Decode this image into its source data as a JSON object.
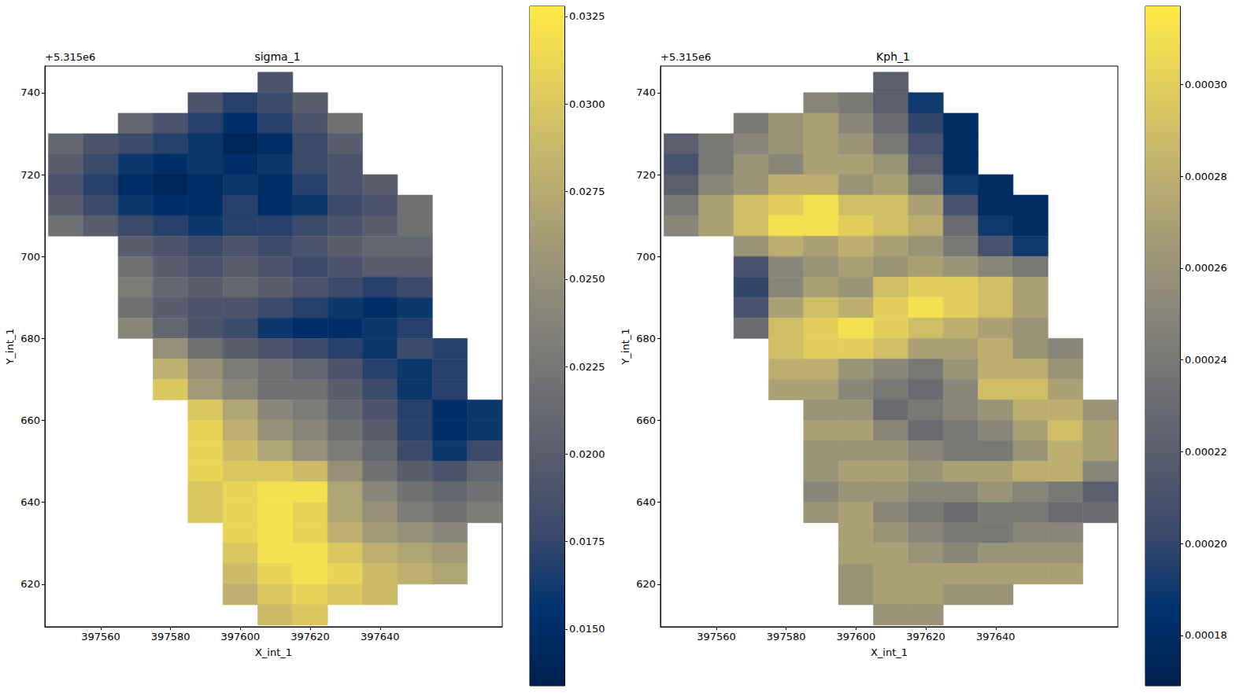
{
  "chart_data": [
    {
      "type": "heatmap",
      "title": "sigma_1",
      "xlabel": "X_int_1",
      "ylabel": "Y_int_1",
      "annotations": [
        "+5.315e6"
      ],
      "xlim": [
        397544,
        397675
      ],
      "ylim": [
        609.6,
        746.5
      ],
      "xticks": [
        397560,
        397580,
        397600,
        397620,
        397640
      ],
      "yticks": [
        620,
        640,
        660,
        680,
        700,
        720,
        740
      ],
      "grid": false,
      "colorbar": {
        "range": [
          0.01338,
          0.03279
        ],
        "ticks": [
          {
            "value": 0.015,
            "label": "0.0150"
          },
          0.0175,
          {
            "value": 0.02,
            "label": "0.0200"
          },
          0.0225,
          {
            "value": 0.025,
            "label": "0.0250"
          },
          0.0275,
          {
            "value": 0.03,
            "label": "0.0300"
          },
          0.0325
        ]
      },
      "cells": {
        "x": [
          397550,
          397560,
          397570,
          397580,
          397590,
          397600,
          397610,
          397620,
          397630,
          397640,
          397650,
          397660,
          397670
        ],
        "y": [
          742.5,
          737.5,
          732.5,
          727.5,
          722.5,
          717.5,
          712.5,
          707.5,
          702.5,
          697.5,
          692.5,
          687.5,
          682.5,
          677.5,
          672.5,
          667.5,
          662.5,
          657.5,
          652.5,
          647.5,
          642.5,
          637.5,
          632.5,
          627.5,
          622.5,
          617.5,
          612.5
        ],
        "values": [
          [
            null,
            null,
            null,
            null,
            null,
            null,
            0.019,
            null,
            null,
            null,
            null,
            null,
            null
          ],
          [
            null,
            null,
            null,
            null,
            0.019,
            0.017,
            0.018,
            0.02,
            null,
            null,
            null,
            null,
            null
          ],
          [
            null,
            null,
            0.021,
            0.019,
            0.017,
            0.015,
            0.017,
            0.019,
            0.022,
            null,
            null,
            null,
            null
          ],
          [
            0.021,
            0.019,
            0.018,
            0.017,
            0.016,
            0.014,
            0.015,
            0.018,
            0.02,
            null,
            null,
            null,
            null
          ],
          [
            0.02,
            0.018,
            0.016,
            0.015,
            0.016,
            0.015,
            0.016,
            0.018,
            0.019,
            null,
            null,
            null,
            null
          ],
          [
            0.019,
            0.017,
            0.015,
            0.014,
            0.015,
            0.016,
            0.015,
            0.017,
            0.019,
            0.02,
            null,
            null,
            null
          ],
          [
            0.02,
            0.018,
            0.016,
            0.015,
            0.015,
            0.017,
            0.015,
            0.016,
            0.018,
            0.019,
            0.022,
            null,
            null
          ],
          [
            0.022,
            0.02,
            0.018,
            0.017,
            0.016,
            0.017,
            0.017,
            0.018,
            0.019,
            0.02,
            0.022,
            null,
            null
          ],
          [
            null,
            null,
            0.02,
            0.019,
            0.018,
            0.019,
            0.018,
            0.019,
            0.02,
            0.021,
            0.021,
            null,
            null
          ],
          [
            null,
            null,
            0.022,
            0.02,
            0.019,
            0.02,
            0.019,
            0.018,
            0.019,
            0.02,
            0.02,
            null,
            null
          ],
          [
            null,
            null,
            0.023,
            0.021,
            0.02,
            0.021,
            0.02,
            0.019,
            0.018,
            0.017,
            0.018,
            null,
            null
          ],
          [
            null,
            null,
            0.022,
            0.02,
            0.019,
            0.019,
            0.018,
            0.017,
            0.016,
            0.015,
            0.016,
            null,
            null
          ],
          [
            null,
            null,
            0.024,
            0.021,
            0.019,
            0.018,
            0.016,
            0.015,
            0.015,
            0.016,
            0.017,
            null,
            null
          ],
          [
            null,
            null,
            null,
            0.025,
            0.022,
            0.02,
            0.019,
            0.018,
            0.017,
            0.016,
            0.018,
            0.017,
            null
          ],
          [
            null,
            null,
            null,
            0.028,
            0.025,
            0.023,
            0.022,
            0.021,
            0.019,
            0.017,
            0.016,
            0.017,
            null
          ],
          [
            null,
            null,
            null,
            0.03,
            0.026,
            0.024,
            0.022,
            0.022,
            0.02,
            0.018,
            0.016,
            0.017,
            null
          ],
          [
            null,
            null,
            null,
            null,
            0.03,
            0.027,
            0.024,
            0.023,
            0.021,
            0.019,
            0.017,
            0.015,
            0.016
          ],
          [
            null,
            null,
            null,
            null,
            0.031,
            0.028,
            0.025,
            0.024,
            0.022,
            0.02,
            0.017,
            0.015,
            0.016
          ],
          [
            null,
            null,
            null,
            null,
            0.031,
            0.029,
            0.027,
            0.025,
            0.023,
            0.021,
            0.018,
            0.016,
            0.018
          ],
          [
            null,
            null,
            null,
            null,
            0.031,
            0.03,
            0.03,
            0.029,
            0.025,
            0.022,
            0.02,
            0.019,
            0.021
          ],
          [
            null,
            null,
            null,
            null,
            0.03,
            0.031,
            0.032,
            0.032,
            0.027,
            0.024,
            0.022,
            0.021,
            0.022
          ],
          [
            null,
            null,
            null,
            null,
            0.03,
            0.031,
            0.032,
            0.031,
            0.027,
            0.025,
            0.023,
            0.022,
            0.023
          ],
          [
            null,
            null,
            null,
            null,
            null,
            0.031,
            0.032,
            0.031,
            0.028,
            0.026,
            0.025,
            0.024,
            null
          ],
          [
            null,
            null,
            null,
            null,
            null,
            0.03,
            0.032,
            0.032,
            0.03,
            0.028,
            0.027,
            0.026,
            null
          ],
          [
            null,
            null,
            null,
            null,
            null,
            0.029,
            0.031,
            0.032,
            0.031,
            0.029,
            0.028,
            0.027,
            null
          ],
          [
            null,
            null,
            null,
            null,
            null,
            0.028,
            0.03,
            0.031,
            0.03,
            0.029,
            null,
            null,
            null
          ],
          [
            null,
            null,
            null,
            null,
            null,
            null,
            0.029,
            0.03,
            null,
            null,
            null,
            null,
            null
          ]
        ]
      }
    },
    {
      "type": "heatmap",
      "title": "Kph_1",
      "xlabel": "X_int_1",
      "ylabel": "Y_int_1",
      "annotations": [
        "+5.315e6"
      ],
      "xlim": [
        397544,
        397675
      ],
      "ylim": [
        609.6,
        746.5
      ],
      "xticks": [
        397560,
        397580,
        397600,
        397620,
        397640
      ],
      "yticks": [
        620,
        640,
        660,
        680,
        700,
        720,
        740
      ],
      "grid": false,
      "colorbar": {
        "range": [
          0.000169,
          0.000317
        ],
        "ticks": [
          0.00018,
          {
            "value": 0.0002,
            "label": "0.00020"
          },
          0.00022,
          0.00024,
          0.00026,
          0.00028,
          {
            "value": 0.0003,
            "label": "0.00030"
          }
        ]
      },
      "cells": {
        "x": [
          397550,
          397560,
          397570,
          397580,
          397590,
          397600,
          397610,
          397620,
          397630,
          397640,
          397650,
          397660,
          397670
        ],
        "y": [
          742.5,
          737.5,
          732.5,
          727.5,
          722.5,
          717.5,
          712.5,
          707.5,
          702.5,
          697.5,
          692.5,
          687.5,
          682.5,
          677.5,
          672.5,
          667.5,
          662.5,
          657.5,
          652.5,
          647.5,
          642.5,
          637.5,
          632.5,
          627.5,
          622.5,
          617.5,
          612.5
        ],
        "values": [
          [
            null,
            null,
            null,
            null,
            null,
            null,
            0.00022,
            null,
            null,
            null,
            null,
            null,
            null
          ],
          [
            null,
            null,
            null,
            null,
            0.00025,
            0.00024,
            0.00022,
            0.00019,
            null,
            null,
            null,
            null,
            null
          ],
          [
            null,
            null,
            0.00024,
            0.00026,
            0.00027,
            0.00025,
            0.00023,
            0.0002,
            0.00018,
            null,
            null,
            null,
            null
          ],
          [
            0.00022,
            0.00024,
            0.00025,
            0.00026,
            0.00027,
            0.00026,
            0.00024,
            0.00021,
            0.00018,
            null,
            null,
            null,
            null
          ],
          [
            0.00021,
            0.00024,
            0.00026,
            0.00025,
            0.00027,
            0.00027,
            0.00026,
            0.00022,
            0.00018,
            null,
            null,
            null,
            null
          ],
          [
            0.00022,
            0.00025,
            0.00026,
            0.00028,
            0.00028,
            0.00026,
            0.00027,
            0.00024,
            0.00019,
            0.00018,
            null,
            null,
            null
          ],
          [
            0.00024,
            0.00027,
            0.00029,
            0.0003,
            0.00031,
            0.00029,
            0.00029,
            0.00027,
            0.00021,
            0.00018,
            0.00018,
            null,
            null
          ],
          [
            0.00025,
            0.00027,
            0.00029,
            0.00031,
            0.00031,
            0.0003,
            0.00029,
            0.00028,
            0.00023,
            0.00019,
            0.00018,
            null,
            null
          ],
          [
            null,
            null,
            0.00026,
            0.00028,
            0.00027,
            0.00028,
            0.00027,
            0.00026,
            0.00024,
            0.00021,
            0.00019,
            null,
            null
          ],
          [
            null,
            null,
            0.00021,
            0.00025,
            0.00026,
            0.00027,
            0.00026,
            0.00027,
            0.00026,
            0.00025,
            0.00024,
            null,
            null
          ],
          [
            null,
            null,
            0.0002,
            0.00025,
            0.00027,
            0.00026,
            0.00029,
            0.0003,
            0.0003,
            0.00029,
            0.00027,
            null,
            null
          ],
          [
            null,
            null,
            0.00021,
            0.00027,
            0.00029,
            0.00028,
            0.0003,
            0.00031,
            0.0003,
            0.00029,
            0.00027,
            null,
            null
          ],
          [
            null,
            null,
            0.00023,
            0.00029,
            0.0003,
            0.00031,
            0.0003,
            0.00029,
            0.00028,
            0.00027,
            0.00026,
            null,
            null
          ],
          [
            null,
            null,
            null,
            0.00029,
            0.0003,
            0.0003,
            0.00029,
            0.00027,
            0.00027,
            0.00028,
            0.00026,
            0.00025,
            null
          ],
          [
            null,
            null,
            null,
            0.00028,
            0.00028,
            0.00026,
            0.00025,
            0.00024,
            0.00026,
            0.00028,
            0.00028,
            0.00026,
            null
          ],
          [
            null,
            null,
            null,
            0.00027,
            0.00027,
            0.00025,
            0.00024,
            0.00023,
            0.00025,
            0.00029,
            0.00029,
            0.00027,
            null
          ],
          [
            null,
            null,
            null,
            null,
            0.00026,
            0.00026,
            0.00023,
            0.00024,
            0.00025,
            0.00026,
            0.00028,
            0.00028,
            0.00026
          ],
          [
            null,
            null,
            null,
            null,
            0.00027,
            0.00027,
            0.00025,
            0.00023,
            0.00024,
            0.00025,
            0.00027,
            0.00029,
            0.00027
          ],
          [
            null,
            null,
            null,
            null,
            0.00026,
            0.00026,
            0.00026,
            0.00025,
            0.00024,
            0.00024,
            0.00026,
            0.00028,
            0.00027
          ],
          [
            null,
            null,
            null,
            null,
            0.00026,
            0.00027,
            0.00027,
            0.00026,
            0.00027,
            0.00027,
            0.00028,
            0.00028,
            0.00025
          ],
          [
            null,
            null,
            null,
            null,
            0.00025,
            0.00026,
            0.00026,
            0.00025,
            0.00025,
            0.00026,
            0.00025,
            0.00024,
            0.00022
          ],
          [
            null,
            null,
            null,
            null,
            0.00026,
            0.00027,
            0.00025,
            0.00024,
            0.00023,
            0.00024,
            0.00024,
            0.00023,
            0.00023
          ],
          [
            null,
            null,
            null,
            null,
            null,
            0.00027,
            0.00026,
            0.00025,
            0.00024,
            0.00024,
            0.00025,
            0.00025,
            null
          ],
          [
            null,
            null,
            null,
            null,
            null,
            0.00027,
            0.00027,
            0.00026,
            0.00025,
            0.00026,
            0.00026,
            0.00026,
            null
          ],
          [
            null,
            null,
            null,
            null,
            null,
            0.00026,
            0.00027,
            0.00027,
            0.00027,
            0.00027,
            0.00027,
            0.00027,
            null
          ],
          [
            null,
            null,
            null,
            null,
            null,
            0.00026,
            0.00027,
            0.00027,
            0.00026,
            0.00026,
            null,
            null,
            null
          ],
          [
            null,
            null,
            null,
            null,
            null,
            null,
            0.00026,
            0.00026,
            null,
            null,
            null,
            null,
            null
          ]
        ]
      }
    }
  ]
}
